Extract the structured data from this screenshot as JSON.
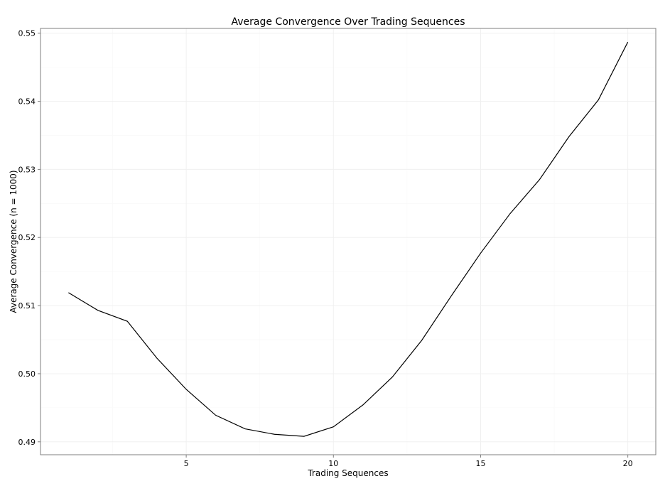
{
  "chart_data": {
    "type": "line",
    "title": "Average Convergence Over Trading Sequences",
    "xlabel": "Trading Sequences",
    "ylabel": "Average Convergence (n = 1000)",
    "xlim": [
      0.05,
      20.95
    ],
    "ylim": [
      0.4881,
      0.5507
    ],
    "x_ticks": [
      5,
      10,
      15,
      20
    ],
    "x_tick_labels": [
      "5",
      "10",
      "15",
      "20"
    ],
    "y_ticks": [
      0.49,
      0.5,
      0.51,
      0.52,
      0.53,
      0.54,
      0.55
    ],
    "y_tick_labels": [
      "0.49",
      "0.50",
      "0.51",
      "0.52",
      "0.53",
      "0.54",
      "0.55"
    ],
    "grid": true,
    "series": [
      {
        "x": [
          1,
          2,
          3,
          4,
          5,
          6,
          7,
          8,
          9,
          10,
          11,
          12,
          13,
          14,
          15,
          16,
          17,
          18,
          19,
          20
        ],
        "values": [
          0.5119,
          0.5093,
          0.5077,
          0.5023,
          0.4977,
          0.4939,
          0.4919,
          0.4911,
          0.4908,
          0.4922,
          0.4954,
          0.4995,
          0.5049,
          0.5114,
          0.5177,
          0.5235,
          0.5285,
          0.5348,
          0.5402,
          0.5487
        ],
        "color": "#000000"
      }
    ]
  }
}
